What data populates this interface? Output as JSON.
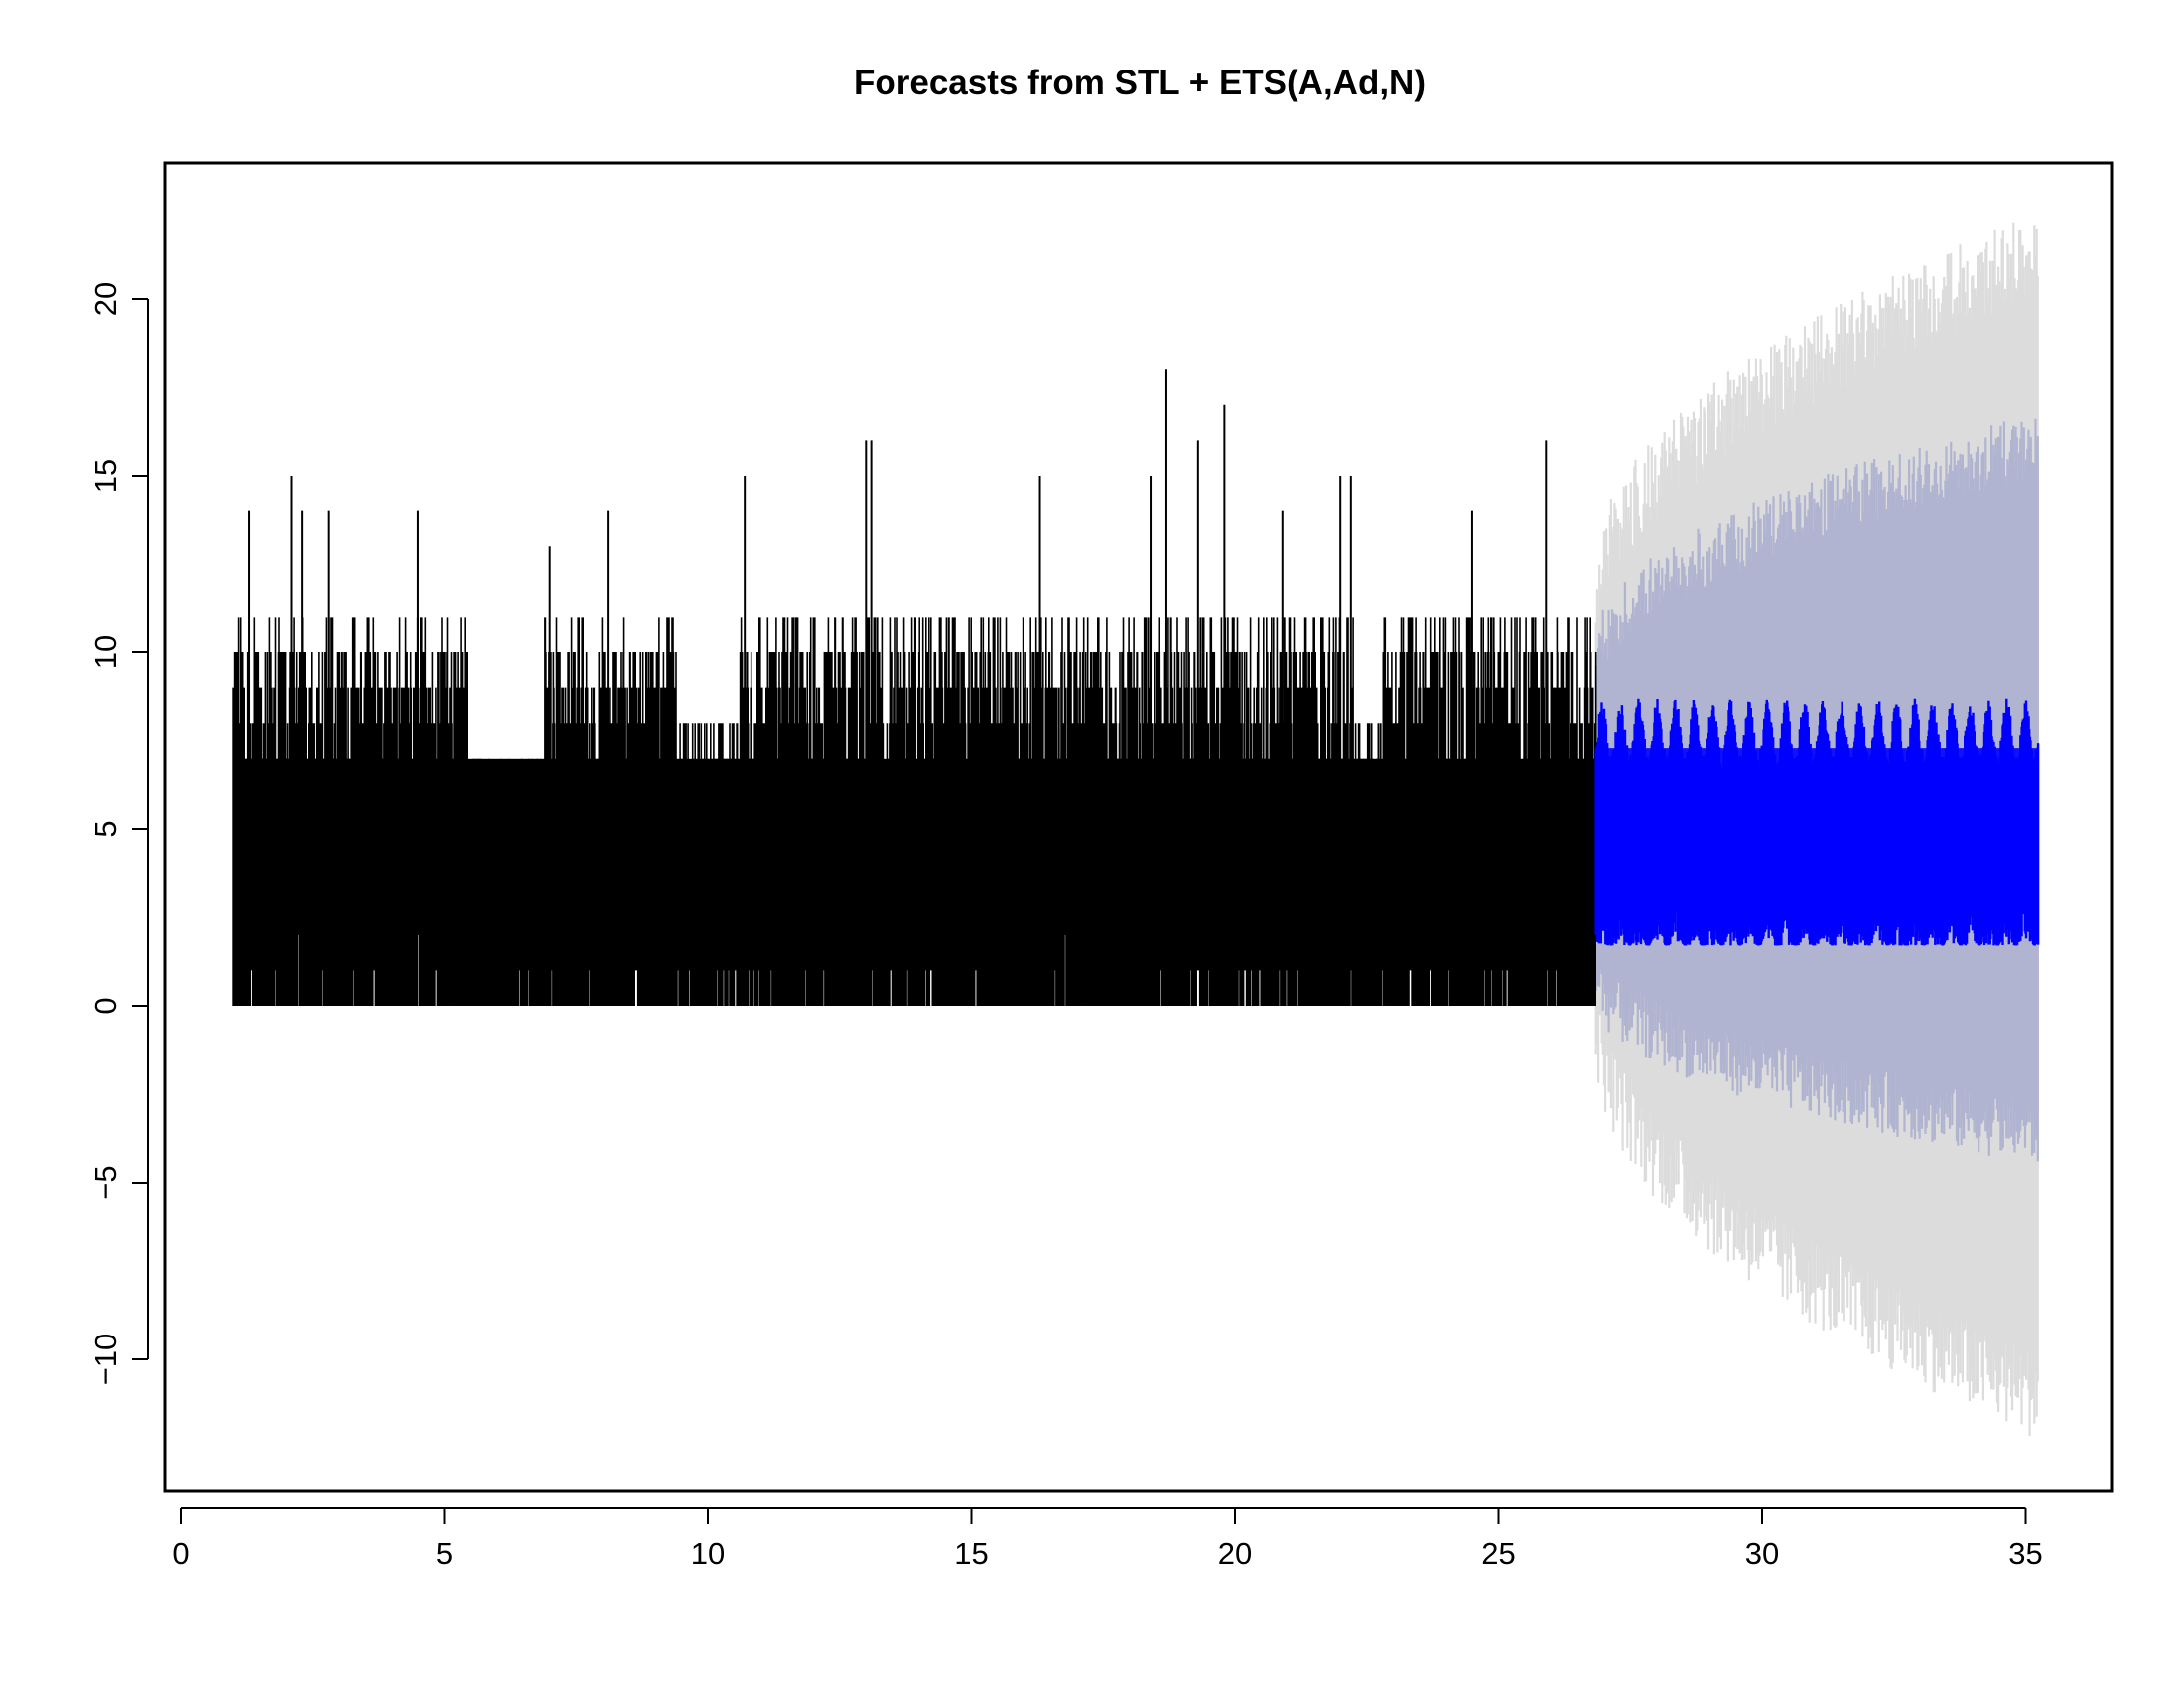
{
  "chart_data": {
    "type": "line",
    "title": "Forecasts from STL +  ETS(A,Ad,N)",
    "xlabel": "",
    "ylabel": "",
    "xlim": [
      0,
      36
    ],
    "ylim": [
      -13.5,
      24
    ],
    "x_ticks": [
      0,
      5,
      10,
      15,
      20,
      25,
      30,
      35
    ],
    "y_ticks": [
      -10,
      -5,
      0,
      5,
      10,
      15,
      20
    ],
    "grid": false,
    "legend": "none",
    "observed": {
      "x_range": [
        1.0,
        26.85
      ],
      "min": 0,
      "max": 18,
      "typical_range": [
        0,
        11
      ],
      "color": "#000000",
      "segments": [
        {
          "x": [
            1.0,
            5.45
          ],
          "low": 0,
          "high": 11
        },
        {
          "x": [
            5.45,
            6.9
          ],
          "low": 0,
          "high": 7
        },
        {
          "x": [
            6.9,
            9.4
          ],
          "low": 0,
          "high": 11
        },
        {
          "x": [
            9.4,
            10.6
          ],
          "low": 0,
          "high": 8
        },
        {
          "x": [
            10.6,
            22.25
          ],
          "low": 0,
          "high": 11
        },
        {
          "x": [
            22.25,
            22.8
          ],
          "low": 0,
          "high": 8
        },
        {
          "x": [
            22.8,
            26.85
          ],
          "low": 0,
          "high": 11
        }
      ],
      "peaks": [
        {
          "x": 1.3,
          "y": 14
        },
        {
          "x": 2.1,
          "y": 15
        },
        {
          "x": 2.3,
          "y": 14
        },
        {
          "x": 2.8,
          "y": 14
        },
        {
          "x": 4.5,
          "y": 14
        },
        {
          "x": 7.0,
          "y": 13
        },
        {
          "x": 8.1,
          "y": 14
        },
        {
          "x": 10.7,
          "y": 15
        },
        {
          "x": 13.0,
          "y": 16
        },
        {
          "x": 13.1,
          "y": 16
        },
        {
          "x": 16.3,
          "y": 15
        },
        {
          "x": 18.7,
          "y": 18
        },
        {
          "x": 18.4,
          "y": 15
        },
        {
          "x": 19.3,
          "y": 16
        },
        {
          "x": 19.8,
          "y": 17
        },
        {
          "x": 22.0,
          "y": 15
        },
        {
          "x": 22.2,
          "y": 15
        },
        {
          "x": 25.9,
          "y": 16
        },
        {
          "x": 24.5,
          "y": 14
        },
        {
          "x": 20.9,
          "y": 14
        }
      ]
    },
    "forecast": {
      "x_range": [
        26.85,
        35.25
      ],
      "mean_low": 1.3,
      "mean_high": 8.7,
      "center": 5.5,
      "color": "#0000ff",
      "interval_80": {
        "start_lower": 0.0,
        "start_upper": 10.5,
        "end_lower": -4.5,
        "end_upper": 16.8,
        "color": "#b0b4d0"
      },
      "interval_95": {
        "start_lower": -1.5,
        "start_upper": 12.5,
        "end_lower": -12.3,
        "end_upper": 22.5,
        "color": "#dcdcdc"
      }
    }
  }
}
